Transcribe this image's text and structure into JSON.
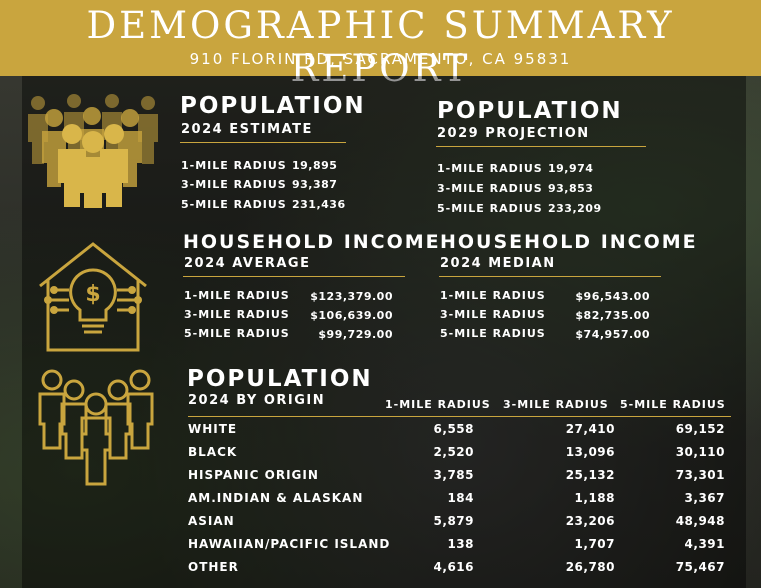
{
  "header": {
    "title": "DEMOGRAPHIC SUMMARY REPORT",
    "address": "910 FLORIN RD, SACRAMENTO, CA 95831"
  },
  "colors": {
    "gold": "#c9a53e",
    "text": "#ffffff"
  },
  "icons": {
    "population": "people-crowd-icon",
    "income": "house-bulb-dollar-icon",
    "origin": "people-group-outline-icon"
  },
  "population_2024": {
    "title": "POPULATION",
    "subtitle": "2024 ESTIMATE",
    "rows": [
      {
        "label": "1-MILE RADIUS",
        "value": "19,895"
      },
      {
        "label": "3-MILE RADIUS",
        "value": "93,387"
      },
      {
        "label": "5-MILE RADIUS",
        "value": "231,436"
      }
    ]
  },
  "population_2029": {
    "title": "POPULATION",
    "subtitle": "2029 PROJECTION",
    "rows": [
      {
        "label": "1-MILE RADIUS",
        "value": "19,974"
      },
      {
        "label": "3-MILE RADIUS",
        "value": "93,853"
      },
      {
        "label": "5-MILE RADIUS",
        "value": "233,209"
      }
    ]
  },
  "income_average": {
    "title": "HOUSEHOLD INCOME",
    "subtitle": "2024 AVERAGE",
    "rows": [
      {
        "label": "1-MILE RADIUS",
        "value": "$123,379.00"
      },
      {
        "label": "3-MILE RADIUS",
        "value": "$106,639.00"
      },
      {
        "label": "5-MILE RADIUS",
        "value": "$99,729.00"
      }
    ]
  },
  "income_median": {
    "title": "HOUSEHOLD INCOME",
    "subtitle": "2024 MEDIAN",
    "rows": [
      {
        "label": "1-MILE RADIUS",
        "value": "$96,543.00"
      },
      {
        "label": "3-MILE RADIUS",
        "value": "$82,735.00"
      },
      {
        "label": "5-MILE RADIUS",
        "value": "$74,957.00"
      }
    ]
  },
  "origin": {
    "title": "POPULATION",
    "subtitle": "2024 BY ORIGIN",
    "columns": [
      "1-MILE RADIUS",
      "3-MILE RADIUS",
      "5-MILE RADIUS"
    ],
    "rows": [
      {
        "label": "WHITE",
        "values": [
          "6,558",
          "27,410",
          "69,152"
        ]
      },
      {
        "label": "BLACK",
        "values": [
          "2,520",
          "13,096",
          "30,110"
        ]
      },
      {
        "label": "HISPANIC ORIGIN",
        "values": [
          "3,785",
          "25,132",
          "73,301"
        ]
      },
      {
        "label": "AM.INDIAN & ALASKAN",
        "values": [
          "184",
          "1,188",
          "3,367"
        ]
      },
      {
        "label": "ASIAN",
        "values": [
          "5,879",
          "23,206",
          "48,948"
        ]
      },
      {
        "label": "HAWAIIAN/PACIFIC ISLAND",
        "values": [
          "138",
          "1,707",
          "4,391"
        ]
      },
      {
        "label": "OTHER",
        "values": [
          "4,616",
          "26,780",
          "75,467"
        ]
      }
    ]
  }
}
